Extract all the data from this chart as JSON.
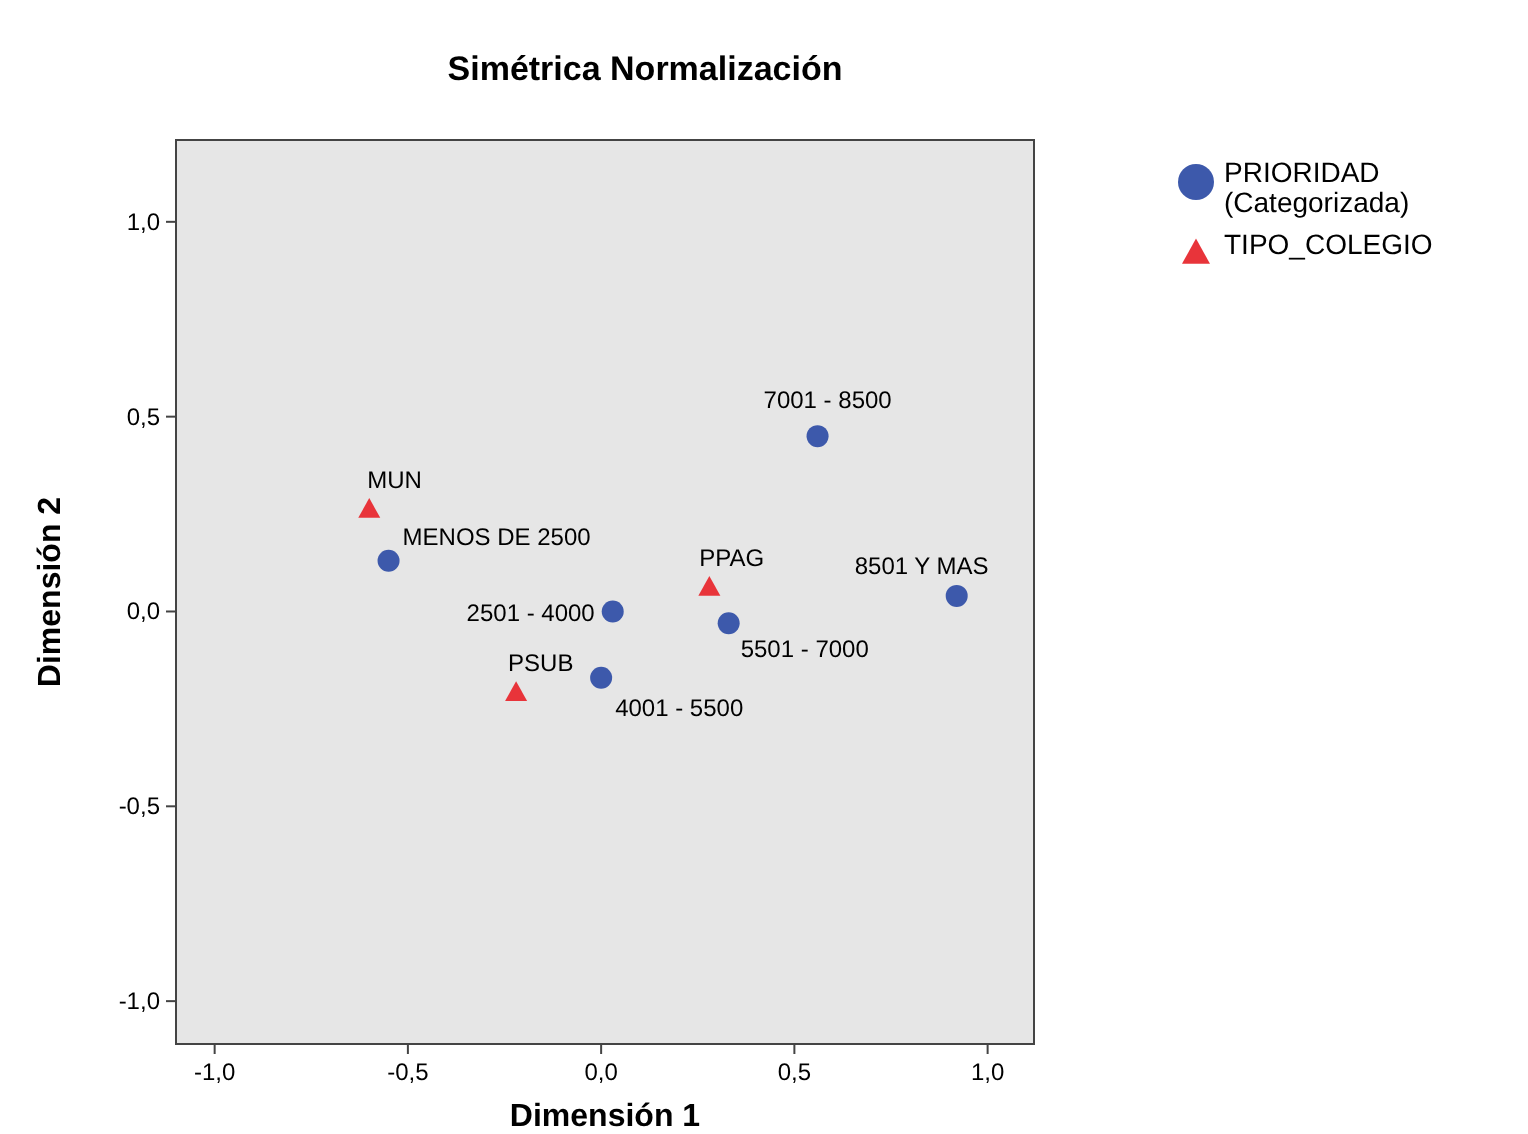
{
  "chart_data": {
    "type": "scatter",
    "title": "Simétrica Normalización",
    "xlabel": "Dimensión 1",
    "ylabel": "Dimensión 2",
    "xlim": [
      -1.1,
      1.12
    ],
    "ylim": [
      -1.11,
      1.21
    ],
    "xticks": [
      {
        "value": -1,
        "label": "-1,0"
      },
      {
        "value": -0.5,
        "label": "-0,5"
      },
      {
        "value": 0,
        "label": "0,0"
      },
      {
        "value": 0.5,
        "label": "0,5"
      },
      {
        "value": 1,
        "label": "1,0"
      }
    ],
    "yticks": [
      {
        "value": -1,
        "label": "-1,0"
      },
      {
        "value": -0.5,
        "label": "-0,5"
      },
      {
        "value": 0,
        "label": "0,0"
      },
      {
        "value": 0.5,
        "label": "0,5"
      },
      {
        "value": 1,
        "label": "1,0"
      }
    ],
    "grid": false,
    "legend": "right",
    "series": [
      {
        "name": "PRIORIDAD (Categorizada)",
        "color": "#3d59ab",
        "marker": "circle",
        "x": [
          0.56,
          -0.55,
          0.03,
          0.33,
          0.0,
          0.92
        ],
        "values": [
          0.45,
          0.13,
          0.0,
          -0.03,
          -0.17,
          0.04
        ]
      },
      {
        "name": "TIPO_COLEGIO",
        "color": "#e8343a",
        "marker": "triangle",
        "x": [
          -0.6,
          0.28,
          -0.22
        ],
        "values": [
          0.26,
          0.06,
          -0.21
        ]
      }
    ],
    "annotations": [
      {
        "text": "7001 - 8500",
        "x": 0.56,
        "y": 0.45
      },
      {
        "text": "MENOS DE 2500",
        "x": -0.55,
        "y": 0.13
      },
      {
        "text": "2501 - 4000",
        "x": 0.03,
        "y": 0.0
      },
      {
        "text": "5501 - 7000",
        "x": 0.33,
        "y": -0.03
      },
      {
        "text": "4001 - 5500",
        "x": 0.0,
        "y": -0.17
      },
      {
        "text": "8501 Y MAS",
        "x": 0.92,
        "y": 0.04
      },
      {
        "text": "MUN",
        "x": -0.6,
        "y": 0.26
      },
      {
        "text": "PPAG",
        "x": 0.28,
        "y": 0.06
      },
      {
        "text": "PSUB",
        "x": -0.22,
        "y": -0.21
      }
    ]
  }
}
